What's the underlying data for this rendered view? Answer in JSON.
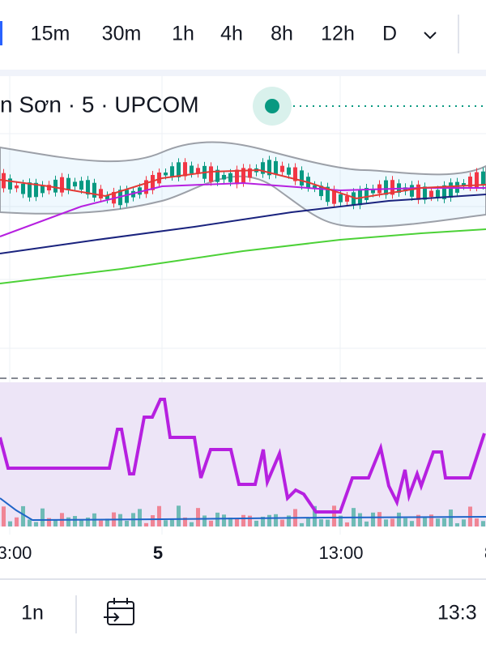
{
  "timeframes": [
    "15m",
    "30m",
    "1h",
    "4h",
    "8h",
    "12h",
    "D"
  ],
  "legend": "n Sơn · 5 · UPCOM",
  "time_axis": [
    "3:00",
    "5",
    "13:00",
    "8"
  ],
  "bottom_bar": {
    "range": "1n",
    "time": "13:3"
  }
}
